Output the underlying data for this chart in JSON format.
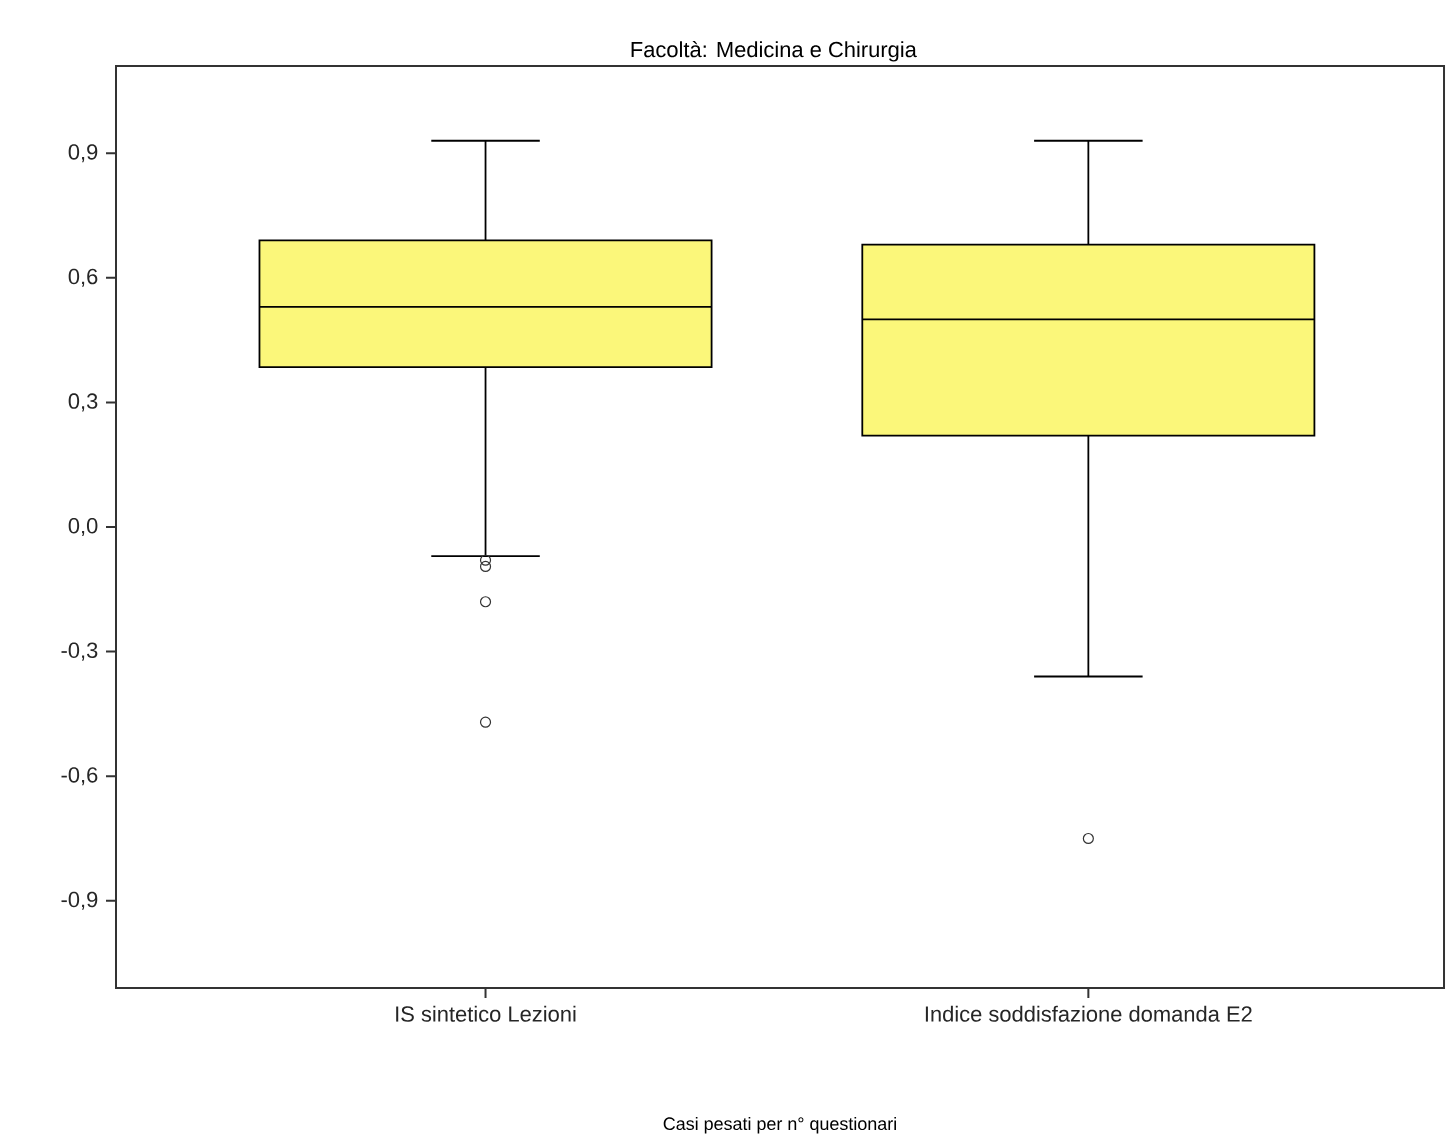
{
  "chart_data": {
    "type": "box",
    "title": "Facoltà: Medicina e Chirurgia",
    "categories": [
      "IS sintetico Lezioni",
      "Indice soddisfazione domanda E2"
    ],
    "color": "#fbf77a",
    "boxes": [
      {
        "low": -0.07,
        "q1": 0.385,
        "median": 0.53,
        "q3": 0.69,
        "high": 0.93,
        "outliers": [
          -0.08,
          -0.095,
          -0.18,
          -0.47
        ]
      },
      {
        "low": -0.36,
        "q1": 0.22,
        "median": 0.5,
        "q3": 0.68,
        "high": 0.93,
        "outliers": [
          -0.75
        ]
      }
    ],
    "ylim": [
      -1.11,
      1.11
    ],
    "yticks": [
      {
        "value": -0.9,
        "label": "-0,9"
      },
      {
        "value": -0.6,
        "label": "-0,6"
      },
      {
        "value": -0.3,
        "label": "-0,3"
      },
      {
        "value": 0,
        "label": "0,0"
      },
      {
        "value": 0.3,
        "label": "0,3"
      },
      {
        "value": 0.6,
        "label": "0,6"
      },
      {
        "value": 0.9,
        "label": "0,9"
      }
    ],
    "grid": false,
    "marker": "circle",
    "annotations": [
      "Casi pesati per n° questionari"
    ]
  }
}
